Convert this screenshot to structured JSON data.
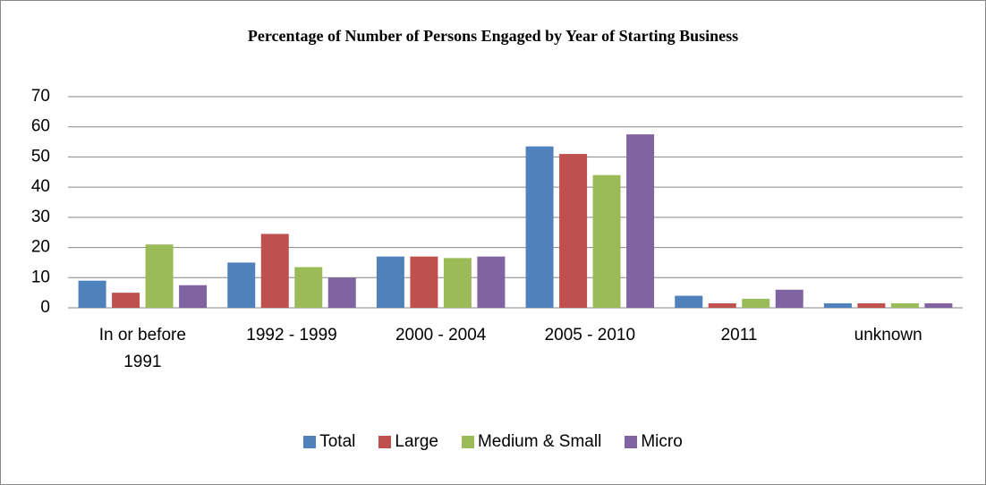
{
  "chart_data": {
    "type": "bar",
    "title": "Percentage of Number of Persons Engaged by Year of Starting Business",
    "categories": [
      "In or before 1991",
      "1992 - 1999",
      "2000 - 2004",
      "2005 - 2010",
      "2011",
      "unknown"
    ],
    "series": [
      {
        "name": "Total",
        "color": "#4f81bd",
        "values": [
          9,
          15,
          17,
          53.5,
          4,
          1.5
        ]
      },
      {
        "name": "Large",
        "color": "#c0504d",
        "values": [
          5,
          24.5,
          17,
          51,
          1.5,
          1.5
        ]
      },
      {
        "name": "Medium & Small",
        "color": "#9bbb59",
        "values": [
          21,
          13.5,
          16.5,
          44,
          3,
          1.5
        ]
      },
      {
        "name": "Micro",
        "color": "#8064a2",
        "values": [
          7.5,
          10,
          17,
          57.5,
          6,
          1.5
        ]
      }
    ],
    "ylim": [
      0,
      70
    ],
    "yticks": [
      0,
      10,
      20,
      30,
      40,
      50,
      60,
      70
    ],
    "grid": true,
    "legend": "bottom"
  }
}
